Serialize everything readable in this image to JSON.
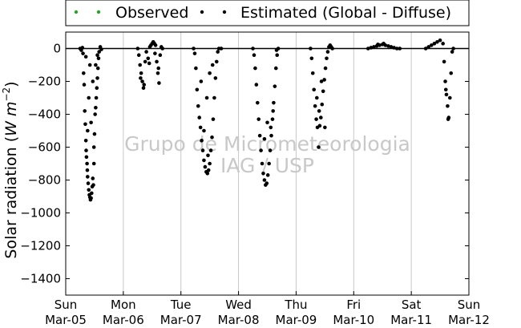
{
  "chart_data": {
    "type": "scatter",
    "ylabel": "Solar radiation (W m⁻²)",
    "ylim": [
      -1500,
      100
    ],
    "yticks": [
      0,
      -200,
      -400,
      -600,
      -800,
      -1000,
      -1200,
      -1400
    ],
    "xlim": [
      0,
      7
    ],
    "xticks": [
      {
        "pos": 0,
        "day": "Sun",
        "date": "Mar-05"
      },
      {
        "pos": 1,
        "day": "Mon",
        "date": "Mar-06"
      },
      {
        "pos": 2,
        "day": "Tue",
        "date": "Mar-07"
      },
      {
        "pos": 3,
        "day": "Wed",
        "date": "Mar-08"
      },
      {
        "pos": 4,
        "day": "Thu",
        "date": "Mar-09"
      },
      {
        "pos": 5,
        "day": "Fri",
        "date": "Mar-10"
      },
      {
        "pos": 6,
        "day": "Sat",
        "date": "Mar-11"
      },
      {
        "pos": 7,
        "day": "Sun",
        "date": "Mar-12"
      }
    ],
    "grid": "vertical",
    "legend_position": "top",
    "watermark": [
      "Grupo de Micrometeorologia",
      "IAG / USP"
    ],
    "series": [
      {
        "name": "Observed",
        "color": "#2ca02c",
        "points": []
      },
      {
        "name": "Estimated (Global - Diffuse)",
        "color": "#000000",
        "points": [
          [
            0.25,
            0
          ],
          [
            0.27,
            -10
          ],
          [
            0.29,
            5
          ],
          [
            0.3,
            -30
          ],
          [
            0.31,
            -150
          ],
          [
            0.32,
            -220
          ],
          [
            0.33,
            -380
          ],
          [
            0.34,
            -460
          ],
          [
            0.35,
            -560
          ],
          [
            0.355,
            -620
          ],
          [
            0.36,
            -660
          ],
          [
            0.37,
            -700
          ],
          [
            0.375,
            -740
          ],
          [
            0.38,
            -780
          ],
          [
            0.39,
            -820
          ],
          [
            0.4,
            -860
          ],
          [
            0.41,
            -890
          ],
          [
            0.42,
            -905
          ],
          [
            0.43,
            -920
          ],
          [
            0.44,
            -910
          ],
          [
            0.45,
            -880
          ],
          [
            0.46,
            -840
          ],
          [
            0.47,
            -790
          ],
          [
            0.48,
            -830
          ],
          [
            0.49,
            -700
          ],
          [
            0.5,
            -520
          ],
          [
            0.51,
            -400
          ],
          [
            0.52,
            -360
          ],
          [
            0.53,
            -300
          ],
          [
            0.54,
            -240
          ],
          [
            0.55,
            -180
          ],
          [
            0.56,
            -120
          ],
          [
            0.57,
            -60
          ],
          [
            0.58,
            -20
          ],
          [
            0.6,
            10
          ],
          [
            0.62,
            -5
          ],
          [
            0.4,
            -300
          ],
          [
            0.42,
            -100
          ],
          [
            0.44,
            -450
          ],
          [
            0.47,
            -200
          ],
          [
            0.49,
            -600
          ],
          [
            0.52,
            -100
          ],
          [
            0.55,
            -40
          ],
          [
            0.35,
            -50
          ],
          [
            0.38,
            -500
          ],
          [
            1.25,
            0
          ],
          [
            1.27,
            -40
          ],
          [
            1.29,
            -100
          ],
          [
            1.31,
            -150
          ],
          [
            1.33,
            -200
          ],
          [
            1.35,
            -240
          ],
          [
            1.38,
            -80
          ],
          [
            1.4,
            -20
          ],
          [
            1.43,
            -60
          ],
          [
            1.46,
            10
          ],
          [
            1.48,
            20
          ],
          [
            1.5,
            30
          ],
          [
            1.52,
            40
          ],
          [
            1.54,
            30
          ],
          [
            1.56,
            20
          ],
          [
            1.58,
            -80
          ],
          [
            1.6,
            -150
          ],
          [
            1.62,
            -210
          ],
          [
            1.64,
            -40
          ],
          [
            1.66,
            10
          ],
          [
            1.68,
            0
          ],
          [
            1.3,
            -180
          ],
          [
            1.36,
            -220
          ],
          [
            1.45,
            -90
          ],
          [
            1.55,
            -30
          ],
          [
            1.61,
            -120
          ],
          [
            2.22,
            0
          ],
          [
            2.24,
            -30
          ],
          [
            2.26,
            -120
          ],
          [
            2.28,
            -250
          ],
          [
            2.3,
            -350
          ],
          [
            2.32,
            -420
          ],
          [
            2.34,
            -480
          ],
          [
            2.36,
            -560
          ],
          [
            2.38,
            -620
          ],
          [
            2.4,
            -680
          ],
          [
            2.42,
            -720
          ],
          [
            2.44,
            -750
          ],
          [
            2.46,
            -760
          ],
          [
            2.48,
            -740
          ],
          [
            2.5,
            -700
          ],
          [
            2.52,
            -620
          ],
          [
            2.54,
            -540
          ],
          [
            2.56,
            -430
          ],
          [
            2.58,
            -300
          ],
          [
            2.6,
            -180
          ],
          [
            2.62,
            -80
          ],
          [
            2.64,
            -20
          ],
          [
            2.66,
            0
          ],
          [
            2.7,
            0
          ],
          [
            2.35,
            -200
          ],
          [
            2.45,
            -300
          ],
          [
            2.5,
            -150
          ],
          [
            2.55,
            -100
          ],
          [
            2.47,
            -650
          ],
          [
            2.4,
            -500
          ],
          [
            3.25,
            0
          ],
          [
            3.27,
            -40
          ],
          [
            3.29,
            -120
          ],
          [
            3.31,
            -220
          ],
          [
            3.33,
            -330
          ],
          [
            3.35,
            -430
          ],
          [
            3.37,
            -530
          ],
          [
            3.39,
            -620
          ],
          [
            3.41,
            -700
          ],
          [
            3.43,
            -760
          ],
          [
            3.45,
            -800
          ],
          [
            3.47,
            -830
          ],
          [
            3.49,
            -820
          ],
          [
            3.51,
            -770
          ],
          [
            3.53,
            -700
          ],
          [
            3.55,
            -620
          ],
          [
            3.57,
            -530
          ],
          [
            3.59,
            -430
          ],
          [
            3.61,
            -330
          ],
          [
            3.63,
            -230
          ],
          [
            3.65,
            -120
          ],
          [
            3.67,
            -40
          ],
          [
            3.69,
            0
          ],
          [
            3.5,
            -450
          ],
          [
            3.56,
            -480
          ],
          [
            3.6,
            -380
          ],
          [
            3.45,
            -550
          ],
          [
            3.66,
            -10
          ],
          [
            4.25,
            0
          ],
          [
            4.27,
            -60
          ],
          [
            4.29,
            -150
          ],
          [
            4.31,
            -250
          ],
          [
            4.33,
            -350
          ],
          [
            4.35,
            -430
          ],
          [
            4.37,
            -480
          ],
          [
            4.39,
            -600
          ],
          [
            4.41,
            -470
          ],
          [
            4.43,
            -420
          ],
          [
            4.45,
            -340
          ],
          [
            4.47,
            -260
          ],
          [
            4.49,
            -190
          ],
          [
            4.51,
            -120
          ],
          [
            4.53,
            -60
          ],
          [
            4.55,
            -20
          ],
          [
            4.57,
            10
          ],
          [
            4.59,
            20
          ],
          [
            4.61,
            10
          ],
          [
            4.63,
            0
          ],
          [
            4.36,
            -300
          ],
          [
            4.44,
            -200
          ],
          [
            4.5,
            -480
          ],
          [
            4.4,
            -380
          ],
          [
            5.25,
            0
          ],
          [
            5.3,
            5
          ],
          [
            5.35,
            10
          ],
          [
            5.4,
            15
          ],
          [
            5.45,
            20
          ],
          [
            5.5,
            25
          ],
          [
            5.55,
            20
          ],
          [
            5.6,
            15
          ],
          [
            5.65,
            10
          ],
          [
            5.7,
            5
          ],
          [
            5.75,
            0
          ],
          [
            5.8,
            0
          ],
          [
            5.42,
            25
          ],
          [
            5.52,
            30
          ],
          [
            6.25,
            0
          ],
          [
            6.3,
            10
          ],
          [
            6.35,
            20
          ],
          [
            6.4,
            30
          ],
          [
            6.45,
            40
          ],
          [
            6.5,
            50
          ],
          [
            6.55,
            30
          ],
          [
            6.57,
            -80
          ],
          [
            6.59,
            -200
          ],
          [
            6.61,
            -280
          ],
          [
            6.63,
            -350
          ],
          [
            6.65,
            -420
          ],
          [
            6.67,
            -300
          ],
          [
            6.69,
            -150
          ],
          [
            6.71,
            -20
          ],
          [
            6.73,
            0
          ],
          [
            6.6,
            -250
          ],
          [
            6.64,
            -430
          ]
        ]
      }
    ]
  }
}
